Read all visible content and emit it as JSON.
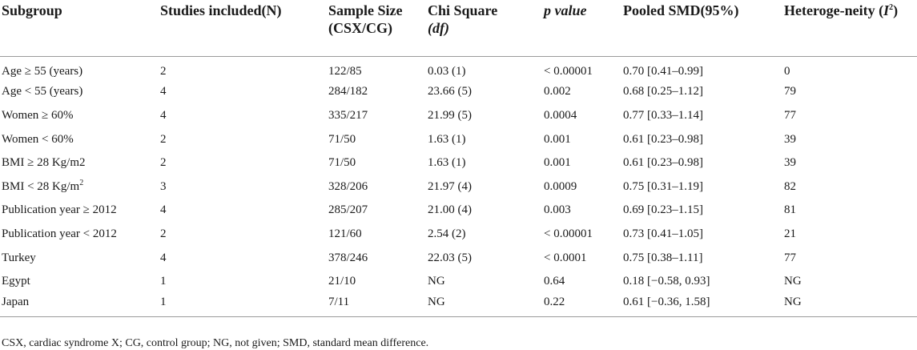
{
  "headers": [
    {
      "line1": "Subgroup",
      "line2": ""
    },
    {
      "line1": "Studies included(N)",
      "line2": ""
    },
    {
      "line1": "Sample Size",
      "line2": "(CSX/CG)"
    },
    {
      "line1": "Chi Square",
      "line2": "(df)"
    },
    {
      "line1": "p value",
      "line2": ""
    },
    {
      "line1": "Pooled SMD(95%)",
      "line2": ""
    },
    {
      "line1": "Heteroge-neity (I2)",
      "line2": ""
    }
  ],
  "rows": [
    [
      "Age ≥ 55 (years)",
      "2",
      "122/85",
      "0.03 (1)",
      "< 0.00001",
      "0.70 [0.41–0.99]",
      "0"
    ],
    [
      "Age < 55 (years)",
      "4",
      "284/182",
      "23.66 (5)",
      "0.002",
      "0.68 [0.25–1.12]",
      "79"
    ],
    [
      "Women ≥ 60%",
      "4",
      "335/217",
      "21.99 (5)",
      "0.0004",
      "0.77 [0.33–1.14]",
      "77"
    ],
    [
      "Women < 60%",
      "2",
      "71/50",
      "1.63 (1)",
      "0.001",
      "0.61 [0.23–0.98]",
      "39"
    ],
    [
      "BMI ≥ 28 Kg/m2",
      "2",
      "71/50",
      "1.63 (1)",
      "0.001",
      "0.61 [0.23–0.98]",
      "39"
    ],
    [
      "BMI < 28 Kg/m2",
      "3",
      "328/206",
      "21.97 (4)",
      "0.0009",
      "0.75 [0.31–1.19]",
      "82"
    ],
    [
      "Publication year ≥ 2012",
      "4",
      "285/207",
      "21.00 (4)",
      "0.003",
      "0.69 [0.23–1.15]",
      "81"
    ],
    [
      "Publication year < 2012",
      "2",
      "121/60",
      "2.54 (2)",
      "< 0.00001",
      "0.73 [0.41–1.05]",
      "21"
    ],
    [
      "Turkey",
      "4",
      "378/246",
      "22.03 (5)",
      "< 0.0001",
      "0.75 [0.38–1.11]",
      "77"
    ],
    [
      "Egypt",
      "1",
      "21/10",
      "NG",
      "0.64",
      "0.18 [−0.58, 0.93]",
      "NG"
    ],
    [
      "Japan",
      "1",
      "7/11",
      "NG",
      "0.22",
      "0.61 [−0.36, 1.58]",
      "NG"
    ]
  ],
  "footnote": "CSX, cardiac syndrome X; CG, control group; NG, not given; SMD, standard mean difference."
}
